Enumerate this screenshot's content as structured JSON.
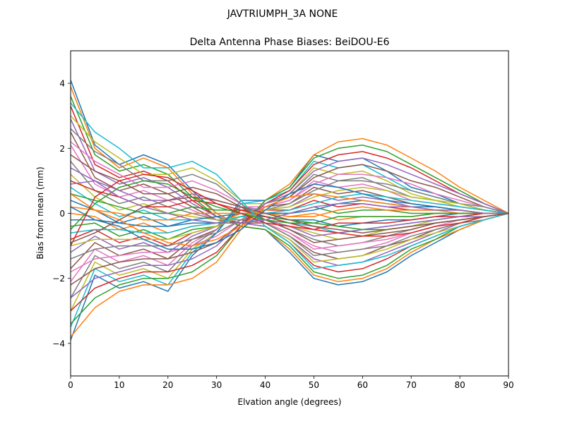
{
  "figure": {
    "suptitle": "JAVTRIUMPH_3A   NONE"
  },
  "chart_data": {
    "type": "line",
    "title": "Delta Antenna Phase Biases: BeiDOU-E6",
    "xlabel": "Elvation angle (degrees)",
    "ylabel": "Bias from mean (mm)",
    "xlim": [
      0,
      90
    ],
    "ylim": [
      -5,
      5
    ],
    "x_ticks": [
      0,
      10,
      20,
      30,
      40,
      50,
      60,
      70,
      80,
      90
    ],
    "y_ticks": [
      -4,
      -2,
      0,
      2,
      4
    ],
    "x_tick_labels": [
      "0",
      "10",
      "20",
      "30",
      "40",
      "50",
      "60",
      "70",
      "80",
      "90"
    ],
    "y_tick_labels": [
      "−4",
      "−2",
      "0",
      "2",
      "4"
    ],
    "grid": false,
    "legend": "none",
    "x": [
      0,
      5,
      10,
      15,
      20,
      25,
      30,
      35,
      40,
      45,
      50,
      55,
      60,
      65,
      70,
      75,
      80,
      85,
      90
    ],
    "palette": [
      "#1f77b4",
      "#ff7f0e",
      "#2ca02c",
      "#d62728",
      "#9467bd",
      "#8c564b",
      "#e377c2",
      "#7f7f7f",
      "#bcbd22",
      "#17becf"
    ],
    "series": [
      {
        "values": [
          4.1,
          2.1,
          1.5,
          1.8,
          1.5,
          0.7,
          0.0,
          -0.4,
          -0.5,
          -1.2,
          -2.0,
          -2.2,
          -2.1,
          -1.8,
          -1.3,
          -0.9,
          -0.5,
          -0.2,
          0.0
        ]
      },
      {
        "values": [
          3.9,
          2.0,
          1.4,
          1.7,
          1.4,
          0.6,
          0.0,
          -0.4,
          -0.5,
          -1.1,
          -1.9,
          -2.1,
          -2.0,
          -1.7,
          -1.2,
          -0.8,
          -0.5,
          -0.2,
          0.0
        ]
      },
      {
        "values": [
          3.6,
          1.8,
          1.3,
          1.5,
          1.2,
          0.5,
          -0.1,
          -0.4,
          -0.5,
          -1.0,
          -1.8,
          -2.0,
          -1.9,
          -1.6,
          -1.1,
          -0.8,
          -0.4,
          -0.2,
          0.0
        ]
      },
      {
        "values": [
          3.3,
          1.5,
          1.1,
          1.3,
          1.0,
          0.4,
          -0.1,
          -0.3,
          -0.4,
          -0.9,
          -1.6,
          -1.8,
          -1.7,
          -1.4,
          -1.0,
          -0.7,
          -0.4,
          -0.2,
          0.0
        ]
      },
      {
        "values": [
          2.9,
          1.3,
          0.9,
          1.1,
          0.8,
          0.3,
          -0.1,
          -0.3,
          -0.4,
          -0.8,
          -1.4,
          -1.6,
          -1.5,
          -1.2,
          -0.9,
          -0.6,
          -0.3,
          -0.1,
          0.0
        ]
      },
      {
        "values": [
          2.5,
          1.1,
          0.7,
          0.9,
          0.6,
          0.2,
          -0.2,
          -0.3,
          -0.3,
          -0.7,
          -1.2,
          -1.4,
          -1.3,
          -1.0,
          -0.8,
          -0.5,
          -0.3,
          -0.1,
          0.0
        ]
      },
      {
        "values": [
          2.1,
          0.9,
          0.5,
          0.7,
          0.4,
          0.1,
          -0.2,
          -0.2,
          -0.3,
          -0.6,
          -1.0,
          -1.2,
          -1.1,
          -0.9,
          -0.6,
          -0.4,
          -0.2,
          -0.1,
          0.0
        ]
      },
      {
        "values": [
          1.6,
          0.7,
          0.3,
          0.5,
          0.2,
          0.0,
          -0.2,
          -0.2,
          -0.2,
          -0.5,
          -0.8,
          -1.0,
          -0.9,
          -0.7,
          -0.5,
          -0.3,
          -0.2,
          -0.1,
          0.0
        ]
      },
      {
        "values": [
          1.2,
          0.5,
          0.1,
          0.3,
          0.0,
          -0.1,
          -0.2,
          -0.1,
          -0.2,
          -0.4,
          -0.6,
          -0.8,
          -0.7,
          -0.5,
          -0.4,
          -0.2,
          -0.1,
          0.0,
          0.0
        ]
      },
      {
        "values": [
          0.8,
          0.3,
          -0.1,
          0.1,
          -0.2,
          -0.2,
          -0.3,
          -0.1,
          -0.1,
          -0.3,
          -0.4,
          -0.6,
          -0.5,
          -0.4,
          -0.3,
          -0.2,
          -0.1,
          0.0,
          0.0
        ]
      },
      {
        "values": [
          0.4,
          0.1,
          -0.3,
          -0.1,
          -0.4,
          -0.3,
          -0.3,
          0.0,
          -0.1,
          -0.2,
          -0.2,
          -0.4,
          -0.3,
          -0.2,
          -0.2,
          -0.1,
          0.0,
          0.0,
          0.0
        ]
      },
      {
        "values": [
          0.0,
          -0.1,
          -0.5,
          -0.3,
          -0.6,
          -0.4,
          -0.3,
          0.0,
          0.0,
          -0.1,
          0.0,
          -0.2,
          -0.1,
          -0.1,
          -0.1,
          0.0,
          0.0,
          0.0,
          0.0
        ]
      },
      {
        "values": [
          -0.4,
          -0.3,
          -0.7,
          -0.5,
          -0.8,
          -0.5,
          -0.4,
          0.1,
          0.0,
          0.0,
          0.2,
          0.0,
          0.1,
          0.1,
          0.0,
          0.0,
          0.0,
          0.0,
          0.0
        ]
      },
      {
        "values": [
          -0.8,
          -0.5,
          -0.9,
          -0.7,
          -1.0,
          -0.6,
          -0.4,
          0.1,
          0.1,
          0.1,
          0.4,
          0.2,
          0.3,
          0.2,
          0.1,
          0.1,
          0.1,
          0.0,
          0.0
        ]
      },
      {
        "values": [
          -1.2,
          -0.7,
          -1.1,
          -0.9,
          -1.2,
          -0.7,
          -0.4,
          0.2,
          0.1,
          0.2,
          0.6,
          0.4,
          0.5,
          0.4,
          0.2,
          0.2,
          0.1,
          0.0,
          0.0
        ]
      },
      {
        "values": [
          -1.7,
          -0.9,
          -1.3,
          -1.1,
          -1.4,
          -0.8,
          -0.5,
          0.2,
          0.2,
          0.3,
          0.8,
          0.6,
          0.7,
          0.5,
          0.3,
          0.2,
          0.1,
          0.0,
          0.0
        ]
      },
      {
        "values": [
          -2.1,
          -1.1,
          -1.5,
          -1.3,
          -1.6,
          -0.9,
          -0.5,
          0.2,
          0.2,
          0.4,
          1.0,
          0.8,
          0.9,
          0.7,
          0.4,
          0.3,
          0.2,
          0.1,
          0.0
        ]
      },
      {
        "values": [
          -2.6,
          -1.3,
          -1.7,
          -1.5,
          -1.8,
          -1.0,
          -0.5,
          0.3,
          0.3,
          0.5,
          1.2,
          1.0,
          1.1,
          0.8,
          0.5,
          0.4,
          0.2,
          0.1,
          0.0
        ]
      },
      {
        "values": [
          -3.0,
          -1.5,
          -1.9,
          -1.7,
          -2.0,
          -1.1,
          -0.6,
          0.3,
          0.3,
          0.6,
          1.4,
          1.2,
          1.3,
          1.0,
          0.6,
          0.4,
          0.2,
          0.1,
          0.0
        ]
      },
      {
        "values": [
          -3.5,
          -1.7,
          -2.1,
          -1.9,
          -2.2,
          -1.2,
          -0.6,
          0.3,
          0.4,
          0.7,
          1.6,
          1.4,
          1.5,
          1.1,
          0.7,
          0.5,
          0.3,
          0.1,
          0.0
        ]
      },
      {
        "values": [
          -3.9,
          -1.9,
          -2.3,
          -2.1,
          -2.4,
          -1.3,
          -0.6,
          0.4,
          0.4,
          0.8,
          1.8,
          1.6,
          1.7,
          1.3,
          0.8,
          0.6,
          0.3,
          0.1,
          0.0
        ]
      },
      {
        "values": [
          -3.8,
          -2.9,
          -2.4,
          -2.2,
          -2.2,
          -2.0,
          -1.5,
          -0.5,
          0.4,
          0.9,
          1.8,
          2.2,
          2.3,
          2.1,
          1.7,
          1.3,
          0.8,
          0.4,
          0.0
        ]
      },
      {
        "values": [
          -3.4,
          -2.6,
          -2.2,
          -2.0,
          -2.0,
          -1.8,
          -1.3,
          -0.4,
          0.4,
          0.8,
          1.7,
          2.0,
          2.1,
          1.9,
          1.5,
          1.1,
          0.7,
          0.3,
          0.0
        ]
      },
      {
        "values": [
          -3.0,
          -2.3,
          -2.0,
          -1.8,
          -1.8,
          -1.6,
          -1.2,
          -0.4,
          0.3,
          0.7,
          1.5,
          1.8,
          1.9,
          1.7,
          1.4,
          1.0,
          0.6,
          0.3,
          0.0
        ]
      },
      {
        "values": [
          -2.6,
          -2.0,
          -1.8,
          -1.6,
          -1.6,
          -1.4,
          -1.0,
          -0.3,
          0.3,
          0.6,
          1.3,
          1.6,
          1.7,
          1.5,
          1.2,
          0.9,
          0.6,
          0.3,
          0.0
        ]
      },
      {
        "values": [
          -2.2,
          -1.7,
          -1.5,
          -1.4,
          -1.4,
          -1.2,
          -0.9,
          -0.3,
          0.2,
          0.5,
          1.1,
          1.4,
          1.5,
          1.3,
          1.0,
          0.8,
          0.5,
          0.2,
          0.0
        ]
      },
      {
        "values": [
          -1.8,
          -1.4,
          -1.3,
          -1.2,
          -1.2,
          -1.0,
          -0.7,
          -0.2,
          0.2,
          0.4,
          0.9,
          1.2,
          1.2,
          1.1,
          0.9,
          0.6,
          0.4,
          0.2,
          0.0
        ]
      },
      {
        "values": [
          -1.4,
          -1.1,
          -1.0,
          -1.0,
          -1.0,
          -0.8,
          -0.6,
          -0.2,
          0.1,
          0.3,
          0.7,
          1.0,
          1.0,
          0.9,
          0.7,
          0.5,
          0.3,
          0.2,
          0.0
        ]
      },
      {
        "values": [
          -1.0,
          -0.8,
          -0.8,
          -0.8,
          -0.8,
          -0.6,
          -0.4,
          -0.1,
          0.1,
          0.2,
          0.5,
          0.7,
          0.8,
          0.7,
          0.5,
          0.4,
          0.3,
          0.1,
          0.0
        ]
      },
      {
        "values": [
          -0.6,
          -0.5,
          -0.5,
          -0.6,
          -0.6,
          -0.4,
          -0.3,
          -0.1,
          0.0,
          0.1,
          0.3,
          0.5,
          0.6,
          0.5,
          0.4,
          0.3,
          0.2,
          0.1,
          0.0
        ]
      },
      {
        "values": [
          -0.2,
          -0.2,
          -0.3,
          -0.4,
          -0.4,
          -0.2,
          -0.1,
          0.0,
          0.0,
          0.0,
          0.1,
          0.3,
          0.4,
          0.3,
          0.2,
          0.2,
          0.1,
          0.0,
          0.0
        ]
      },
      {
        "values": [
          0.2,
          0.1,
          0.0,
          -0.2,
          -0.2,
          0.0,
          0.0,
          0.0,
          0.0,
          -0.1,
          -0.1,
          0.1,
          0.2,
          0.1,
          0.1,
          0.1,
          0.0,
          0.0,
          0.0
        ]
      },
      {
        "values": [
          0.6,
          0.4,
          0.2,
          0.0,
          0.0,
          0.2,
          0.1,
          0.1,
          -0.1,
          -0.2,
          -0.3,
          -0.1,
          -0.1,
          -0.1,
          -0.1,
          0.0,
          0.0,
          0.0,
          0.0
        ]
      },
      {
        "values": [
          1.0,
          0.7,
          0.5,
          0.2,
          0.2,
          0.4,
          0.3,
          0.1,
          -0.1,
          -0.3,
          -0.5,
          -0.3,
          -0.3,
          -0.3,
          -0.2,
          -0.1,
          -0.1,
          0.0,
          0.0
        ]
      },
      {
        "values": [
          1.4,
          1.0,
          0.7,
          0.4,
          0.4,
          0.6,
          0.4,
          0.2,
          -0.2,
          -0.4,
          -0.7,
          -0.6,
          -0.5,
          -0.4,
          -0.3,
          -0.2,
          -0.1,
          -0.1,
          0.0
        ]
      },
      {
        "values": [
          1.8,
          1.3,
          1.0,
          0.6,
          0.6,
          0.8,
          0.6,
          0.2,
          -0.2,
          -0.5,
          -0.9,
          -0.8,
          -0.7,
          -0.6,
          -0.5,
          -0.3,
          -0.2,
          -0.1,
          0.0
        ]
      },
      {
        "values": [
          2.2,
          1.6,
          1.2,
          0.8,
          0.8,
          1.0,
          0.7,
          0.3,
          -0.3,
          -0.6,
          -1.1,
          -1.0,
          -0.9,
          -0.8,
          -0.6,
          -0.4,
          -0.3,
          -0.1,
          0.0
        ]
      },
      {
        "values": [
          2.6,
          1.9,
          1.5,
          1.0,
          1.0,
          1.2,
          0.9,
          0.3,
          -0.3,
          -0.7,
          -1.3,
          -1.2,
          -1.1,
          -1.0,
          -0.7,
          -0.5,
          -0.3,
          -0.2,
          0.0
        ]
      },
      {
        "values": [
          3.0,
          2.2,
          1.7,
          1.2,
          1.2,
          1.4,
          1.0,
          0.4,
          -0.4,
          -0.8,
          -1.5,
          -1.4,
          -1.3,
          -1.1,
          -0.8,
          -0.6,
          -0.4,
          -0.2,
          0.0
        ]
      },
      {
        "values": [
          3.4,
          2.5,
          2.0,
          1.4,
          1.4,
          1.6,
          1.2,
          0.4,
          -0.4,
          -0.9,
          -1.7,
          -1.6,
          -1.5,
          -1.3,
          -1.0,
          -0.7,
          -0.4,
          -0.2,
          0.0
        ]
      },
      {
        "values": [
          0.2,
          -0.2,
          -0.4,
          -0.8,
          -1.1,
          -1.1,
          -0.9,
          -0.5,
          0.1,
          0.6,
          0.9,
          0.8,
          0.6,
          0.4,
          0.3,
          0.2,
          0.1,
          0.0,
          0.0
        ]
      },
      {
        "values": [
          0.6,
          0.1,
          -0.2,
          -0.6,
          -0.9,
          -1.0,
          -0.8,
          -0.4,
          0.2,
          0.5,
          0.6,
          0.5,
          0.4,
          0.3,
          0.2,
          0.1,
          0.1,
          0.0,
          0.0
        ]
      },
      {
        "values": [
          -0.5,
          0.3,
          0.8,
          1.0,
          0.9,
          0.5,
          0.2,
          0.0,
          -0.2,
          -0.3,
          -0.3,
          -0.4,
          -0.5,
          -0.5,
          -0.4,
          -0.3,
          -0.2,
          -0.1,
          0.0
        ]
      },
      {
        "values": [
          -1.0,
          0.5,
          1.0,
          1.2,
          1.1,
          0.7,
          0.3,
          0.0,
          -0.3,
          -0.4,
          -0.5,
          -0.6,
          -0.7,
          -0.7,
          -0.6,
          -0.4,
          -0.3,
          -0.1,
          0.0
        ]
      },
      {
        "values": [
          0.9,
          1.0,
          0.5,
          0.2,
          0.0,
          -0.2,
          -0.3,
          -0.3,
          -0.2,
          0.0,
          0.2,
          0.3,
          0.3,
          0.2,
          0.2,
          0.1,
          0.1,
          0.0,
          0.0
        ]
      },
      {
        "values": [
          -0.9,
          -0.6,
          -0.2,
          0.2,
          0.4,
          0.5,
          0.4,
          0.2,
          0.0,
          -0.2,
          -0.4,
          -0.5,
          -0.6,
          -0.5,
          -0.4,
          -0.3,
          -0.2,
          -0.1,
          0.0
        ]
      }
    ]
  }
}
